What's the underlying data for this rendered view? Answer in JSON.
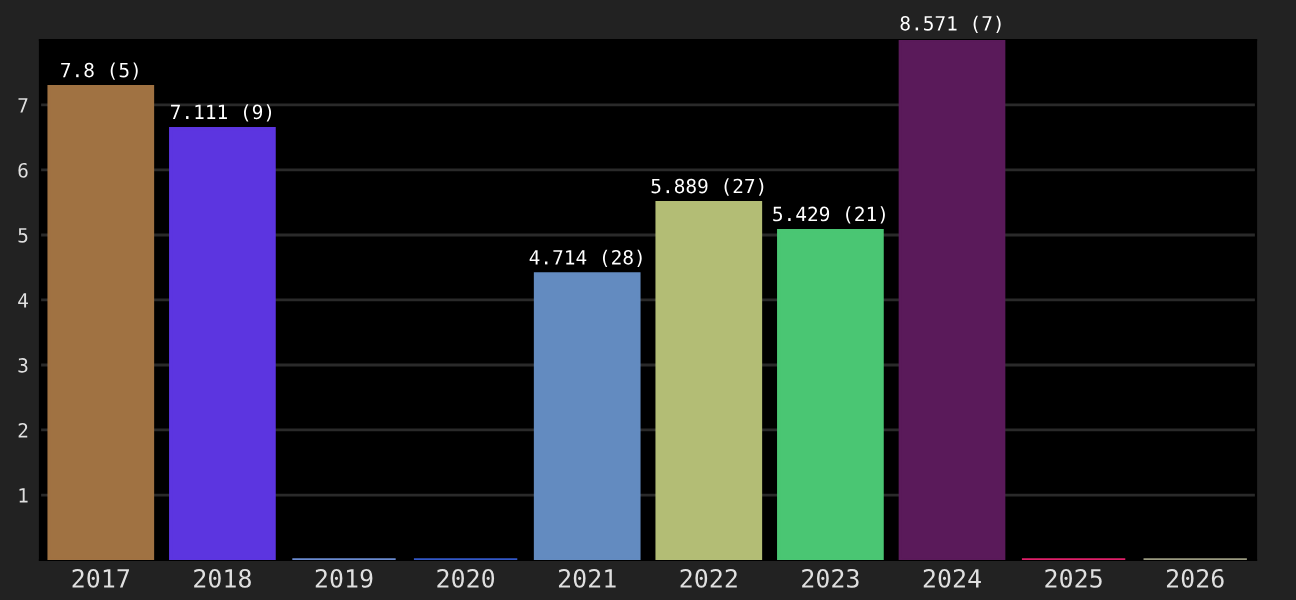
{
  "chart_data": {
    "type": "bar",
    "categories": [
      "2017",
      "2018",
      "2019",
      "2020",
      "2021",
      "2022",
      "2023",
      "2024",
      "2025",
      "2026"
    ],
    "values": [
      7.8,
      7.111,
      0,
      0,
      4.714,
      5.889,
      5.429,
      8.571,
      0,
      0
    ],
    "colors": [
      "#a07242",
      "#5c35e0",
      "#6a8ad0",
      "#3358c8",
      "#638bc0",
      "#b3bd75",
      "#4ac673",
      "#5a1a5a",
      "#e0206a",
      "#9a9a80"
    ],
    "value_labels": [
      "7.8 (5)",
      "7.111 (9)",
      null,
      null,
      "4.714 (28)",
      "5.889 (27)",
      "5.429 (21)",
      "8.571 (7)",
      null,
      null
    ],
    "ylim": [
      0,
      8.571
    ],
    "yticks": [
      {
        "value": 1.071,
        "label": "1"
      },
      {
        "value": 2.143,
        "label": "2"
      },
      {
        "value": 3.214,
        "label": "3"
      },
      {
        "value": 4.286,
        "label": "4"
      },
      {
        "value": 5.357,
        "label": "5"
      },
      {
        "value": 6.429,
        "label": "6"
      },
      {
        "value": 7.5,
        "label": "7"
      }
    ],
    "grid": "y"
  }
}
